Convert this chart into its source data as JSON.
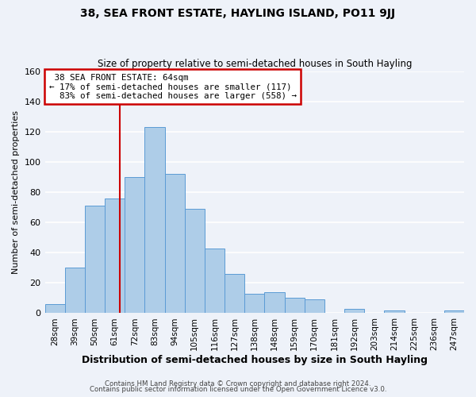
{
  "title": "38, SEA FRONT ESTATE, HAYLING ISLAND, PO11 9JJ",
  "subtitle": "Size of property relative to semi-detached houses in South Hayling",
  "xlabel": "Distribution of semi-detached houses by size in South Hayling",
  "ylabel": "Number of semi-detached properties",
  "bar_labels": [
    "28sqm",
    "39sqm",
    "50sqm",
    "61sqm",
    "72sqm",
    "83sqm",
    "94sqm",
    "105sqm",
    "116sqm",
    "127sqm",
    "138sqm",
    "148sqm",
    "159sqm",
    "170sqm",
    "181sqm",
    "192sqm",
    "203sqm",
    "214sqm",
    "225sqm",
    "236sqm",
    "247sqm"
  ],
  "bar_values": [
    6,
    30,
    71,
    76,
    90,
    123,
    92,
    69,
    43,
    26,
    13,
    14,
    10,
    9,
    0,
    3,
    0,
    2,
    0,
    0,
    2
  ],
  "bar_color": "#aecde8",
  "bar_edge_color": "#5b9bd5",
  "ylim": [
    0,
    160
  ],
  "yticks": [
    0,
    20,
    40,
    60,
    80,
    100,
    120,
    140,
    160
  ],
  "property_line_label": "38 SEA FRONT ESTATE: 64sqm",
  "pct_smaller": "17%",
  "pct_smaller_count": 117,
  "pct_larger": "83%",
  "pct_larger_count": 558,
  "annotation_box_color": "#ffffff",
  "annotation_box_edge": "#cc0000",
  "line_color": "#cc0000",
  "footer_line1": "Contains HM Land Registry data © Crown copyright and database right 2024.",
  "footer_line2": "Contains public sector information licensed under the Open Government Licence v3.0.",
  "background_color": "#eef2f9",
  "grid_color": "#ffffff"
}
